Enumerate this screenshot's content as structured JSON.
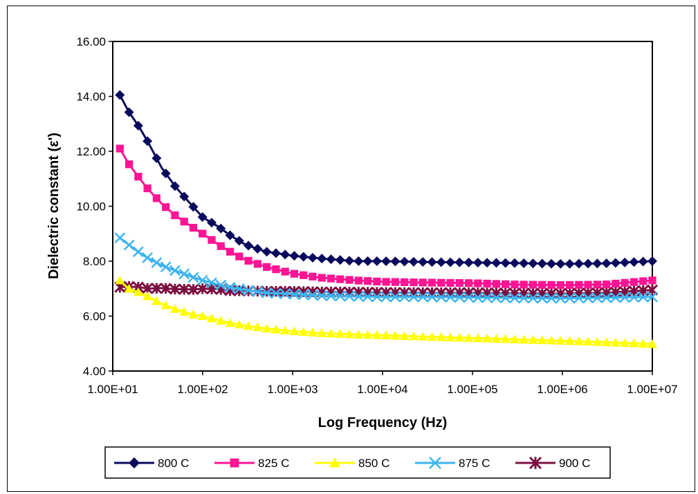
{
  "chart_data": {
    "type": "line",
    "xlabel": "Log Frequency  (Hz)",
    "ylabel": "Dielectric constant (ε')",
    "x_scale": "log",
    "xlim": [
      10,
      10000000
    ],
    "ylim": [
      4.0,
      16.0
    ],
    "x_ticks": [
      "1.00E+01",
      "1.00E+02",
      "1.00E+03",
      "1.00E+04",
      "1.00E+05",
      "1.00E+06",
      "1.00E+07"
    ],
    "y_ticks": [
      "4.00",
      "6.00",
      "8.00",
      "10.00",
      "12.00",
      "14.00",
      "16.00"
    ],
    "grid": false,
    "legend_position": "bottom",
    "series": [
      {
        "name": "800 C",
        "color": "#0a0a5c",
        "marker": "diamond",
        "x": [
          12,
          15,
          20,
          25,
          35,
          50,
          80,
          100,
          150,
          200,
          300,
          500,
          1000,
          2000,
          5000,
          10000,
          30000,
          100000,
          300000,
          1000000,
          3000000,
          10000000
        ],
        "y": [
          14.05,
          13.45,
          12.85,
          12.3,
          11.4,
          10.7,
          9.95,
          9.6,
          9.25,
          8.95,
          8.6,
          8.35,
          8.2,
          8.1,
          8.0,
          8.0,
          7.97,
          7.95,
          7.93,
          7.9,
          7.92,
          8.0
        ]
      },
      {
        "name": "825 C",
        "color": "#ff1493",
        "marker": "square",
        "x": [
          12,
          15,
          20,
          25,
          35,
          50,
          80,
          100,
          150,
          200,
          300,
          500,
          1000,
          2000,
          5000,
          10000,
          30000,
          100000,
          300000,
          1000000,
          3000000,
          10000000
        ],
        "y": [
          12.1,
          11.55,
          11.0,
          10.6,
          10.1,
          9.65,
          9.2,
          9.0,
          8.6,
          8.35,
          8.05,
          7.8,
          7.55,
          7.4,
          7.3,
          7.25,
          7.22,
          7.2,
          7.15,
          7.13,
          7.15,
          7.3
        ]
      },
      {
        "name": "850 C",
        "color": "#ffff00",
        "marker": "triangle",
        "x": [
          12,
          15,
          20,
          25,
          35,
          50,
          80,
          100,
          150,
          200,
          300,
          500,
          1000,
          2000,
          5000,
          10000,
          30000,
          100000,
          300000,
          1000000,
          3000000,
          10000000
        ],
        "y": [
          7.3,
          7.0,
          6.85,
          6.7,
          6.45,
          6.25,
          6.05,
          6.0,
          5.85,
          5.75,
          5.65,
          5.55,
          5.45,
          5.38,
          5.33,
          5.3,
          5.25,
          5.2,
          5.15,
          5.1,
          5.05,
          4.98
        ]
      },
      {
        "name": "875 C",
        "color": "#3cb4f0",
        "marker": "x",
        "x": [
          12,
          15,
          20,
          25,
          35,
          50,
          80,
          100,
          150,
          200,
          300,
          500,
          1000,
          2000,
          5000,
          10000,
          30000,
          100000,
          300000,
          1000000,
          3000000,
          10000000
        ],
        "y": [
          8.85,
          8.6,
          8.3,
          8.1,
          7.85,
          7.65,
          7.4,
          7.3,
          7.15,
          7.05,
          6.95,
          6.85,
          6.8,
          6.75,
          6.72,
          6.7,
          6.7,
          6.68,
          6.66,
          6.65,
          6.67,
          6.7
        ]
      },
      {
        "name": "900 C",
        "color": "#7b1040",
        "marker": "star",
        "x": [
          12,
          15,
          20,
          25,
          35,
          50,
          80,
          100,
          150,
          200,
          300,
          500,
          1000,
          2000,
          5000,
          10000,
          30000,
          100000,
          300000,
          1000000,
          3000000,
          10000000
        ],
        "y": [
          7.05,
          7.08,
          7.05,
          7.0,
          7.02,
          6.98,
          6.97,
          7.0,
          6.98,
          6.93,
          6.92,
          6.9,
          6.9,
          6.88,
          6.87,
          6.86,
          6.85,
          6.85,
          6.83,
          6.82,
          6.85,
          6.95
        ]
      }
    ]
  }
}
